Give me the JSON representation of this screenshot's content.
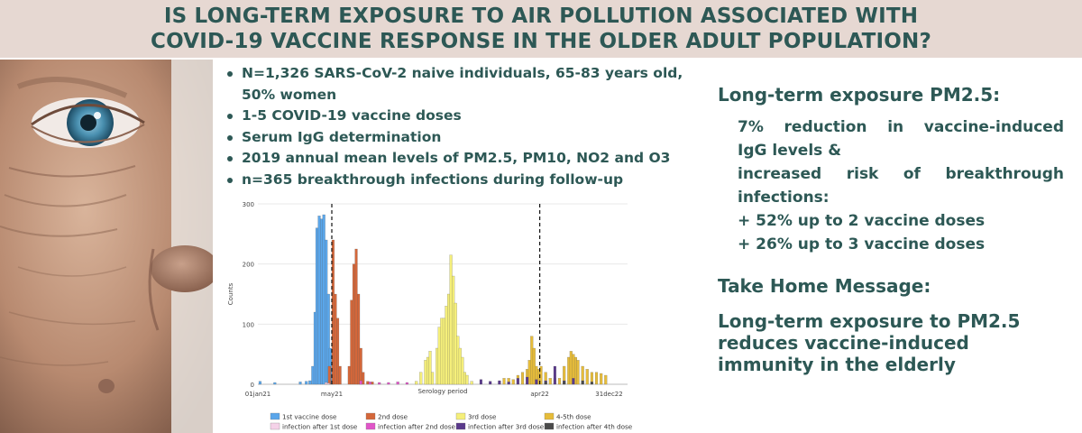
{
  "header": {
    "title_line1": "IS LONG-TERM EXPOSURE TO AIR POLLUTION ASSOCIATED WITH",
    "title_line2": "COVID-19 VACCINE RESPONSE IN THE OLDER ADULT POPULATION?"
  },
  "photo": {
    "description_icon": "elderly-face-photo"
  },
  "bullets": [
    {
      "line1": "N=1,326 SARS-CoV-2 naive individuals, 65-83 years old,",
      "line2": "50% women"
    },
    {
      "line1": "1-5 COVID-19 vaccine doses"
    },
    {
      "line1": "Serum IgG determination"
    },
    {
      "line1": "2019 annual mean levels of PM2.5, PM10, NO2 and O3"
    },
    {
      "line1": "n=365  breakthrough infections during follow-up"
    }
  ],
  "results": {
    "heading": "Long-term exposure PM2.5:",
    "line1": "7%  reduction  in  vaccine-induced",
    "line2": "IgG levels &",
    "line3": "increased  risk  of  breakthrough",
    "line4": "infections:",
    "line5": "+ 52% up to 2 vaccine doses",
    "line6": "+ 26% up to 3 vaccine doses"
  },
  "take_home": {
    "heading": "Take Home Message:",
    "line1": "Long-term exposure to PM2.5",
    "line2": "reduces vaccine-induced",
    "line3": "immunity in the elderly"
  },
  "chart_data": {
    "type": "bar",
    "xlabel": "Serology period",
    "ylabel": "Counts",
    "ylim": [
      0,
      300
    ],
    "yticks": [
      0,
      100,
      200,
      300
    ],
    "x_ticks": [
      "01jan21",
      "may21",
      "apr22",
      "31dec22"
    ],
    "vlines": [
      "may21",
      "apr22"
    ],
    "legend_position": "bottom",
    "colors": {
      "1st vaccine dose": "#5aa6ea",
      "2nd dose": "#d4673a",
      "3rd dose": "#f5ef7a",
      "4-5th dose": "#e6bc3a",
      "infection after 1st dose": "#f5d2e8",
      "infection after 2nd dose": "#e055c8",
      "infection after 3rd dose": "#5a3a8c",
      "infection after 4th dose": "#4a4a4a"
    },
    "legend": [
      "1st vaccine dose",
      "2nd dose",
      "3rd dose",
      "4-5th dose",
      "infection after 1st dose",
      "infection after 2nd dose",
      "infection after 3rd dose",
      "infection after 4th dose"
    ],
    "series": [
      {
        "name": "1st vaccine dose",
        "bins": [
          [
            0.2,
            5
          ],
          [
            3.4,
            3
          ],
          [
            8.9,
            4
          ],
          [
            10.2,
            5
          ],
          [
            11,
            6
          ],
          [
            11.6,
            30
          ],
          [
            12.1,
            120
          ],
          [
            12.5,
            260
          ],
          [
            13,
            280
          ],
          [
            13.5,
            275
          ],
          [
            14,
            282
          ],
          [
            14.5,
            240
          ],
          [
            15,
            150
          ],
          [
            15.4,
            60
          ],
          [
            15.9,
            20
          ]
        ]
      },
      {
        "name": "2nd dose",
        "bins": [
          [
            15.2,
            30
          ],
          [
            16,
            240
          ],
          [
            16.5,
            150
          ],
          [
            17,
            110
          ],
          [
            17.5,
            30
          ],
          [
            19.5,
            30
          ],
          [
            20,
            140
          ],
          [
            20.5,
            200
          ],
          [
            21,
            225
          ],
          [
            21.5,
            150
          ],
          [
            22,
            60
          ],
          [
            22.5,
            20
          ],
          [
            23.5,
            5
          ],
          [
            24.5,
            4
          ]
        ]
      },
      {
        "name": "3rd dose",
        "bins": [
          [
            34,
            5
          ],
          [
            35,
            20
          ],
          [
            36,
            40
          ],
          [
            36.5,
            45
          ],
          [
            37,
            55
          ],
          [
            37.5,
            20
          ],
          [
            38.5,
            60
          ],
          [
            39,
            95
          ],
          [
            39.5,
            110
          ],
          [
            40,
            110
          ],
          [
            40.5,
            130
          ],
          [
            41,
            150
          ],
          [
            41.5,
            215
          ],
          [
            42,
            180
          ],
          [
            42.5,
            135
          ],
          [
            43,
            80
          ],
          [
            43.5,
            60
          ],
          [
            44,
            45
          ],
          [
            44.5,
            20
          ],
          [
            45,
            15
          ],
          [
            46,
            5
          ]
        ]
      },
      {
        "name": "4-5th dose",
        "bins": [
          [
            52,
            5
          ],
          [
            53,
            10
          ],
          [
            54,
            10
          ],
          [
            55,
            8
          ],
          [
            56,
            15
          ],
          [
            57,
            20
          ],
          [
            58,
            25
          ],
          [
            58.5,
            40
          ],
          [
            59,
            80
          ],
          [
            59.5,
            60
          ],
          [
            60,
            30
          ],
          [
            60.5,
            25
          ],
          [
            61,
            30
          ],
          [
            62,
            20
          ],
          [
            63,
            10
          ],
          [
            64,
            10
          ],
          [
            65,
            10
          ],
          [
            66,
            30
          ],
          [
            67,
            45
          ],
          [
            67.5,
            55
          ],
          [
            68,
            50
          ],
          [
            68.5,
            45
          ],
          [
            69,
            40
          ],
          [
            70,
            30
          ],
          [
            71,
            25
          ],
          [
            72,
            20
          ],
          [
            73,
            20
          ],
          [
            74,
            18
          ],
          [
            75,
            15
          ]
        ]
      },
      {
        "name": "infection after 1st dose",
        "bins": [
          [
            14.5,
            3
          ],
          [
            15,
            2
          ]
        ]
      },
      {
        "name": "infection after 2nd dose",
        "bins": [
          [
            22,
            6
          ],
          [
            24,
            4
          ],
          [
            26,
            3
          ],
          [
            28,
            3
          ],
          [
            30,
            4
          ],
          [
            32,
            3
          ]
        ]
      },
      {
        "name": "infection after 3rd dose",
        "bins": [
          [
            48,
            8
          ],
          [
            50,
            5
          ],
          [
            52,
            6
          ],
          [
            54,
            4
          ],
          [
            56,
            10
          ],
          [
            58,
            12
          ],
          [
            60,
            8
          ],
          [
            62,
            6
          ],
          [
            64,
            30
          ],
          [
            66,
            6
          ],
          [
            68,
            10
          ]
        ]
      },
      {
        "name": "infection after 4th dose",
        "bins": [
          [
            62,
            4
          ],
          [
            66,
            5
          ],
          [
            70,
            6
          ],
          [
            72,
            4
          ]
        ]
      }
    ]
  }
}
